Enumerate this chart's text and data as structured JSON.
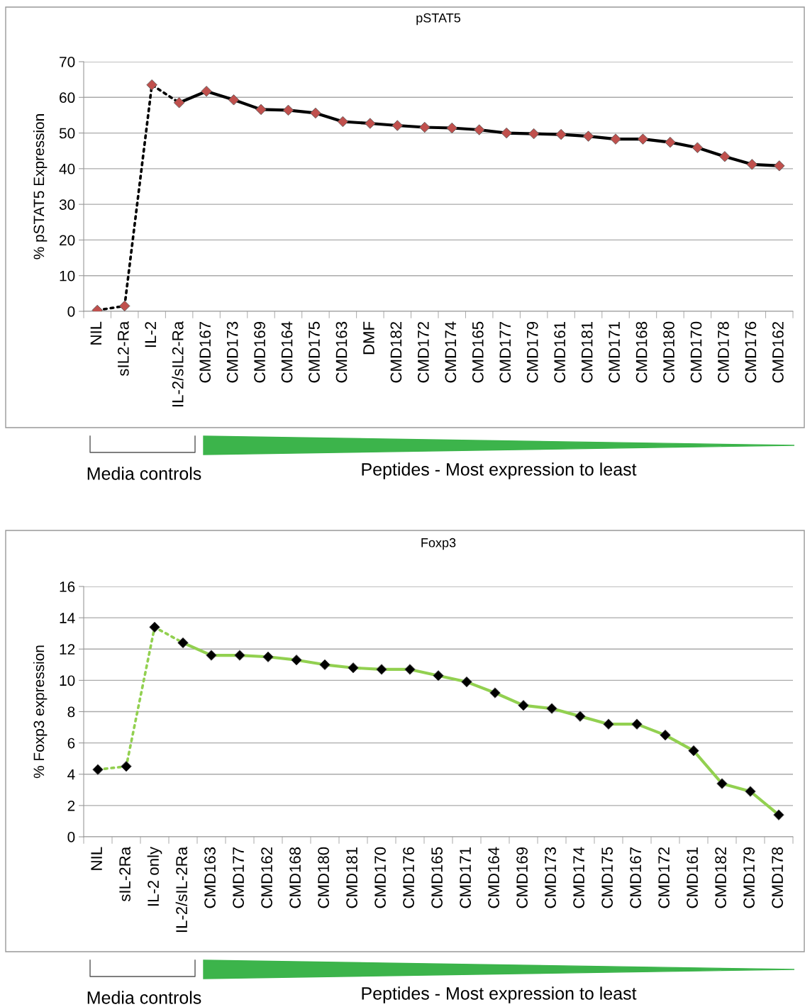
{
  "chart_data": [
    {
      "type": "line",
      "title": "pSTAT5",
      "ylabel": "% pSTAT5 Expression",
      "categories": [
        "NIL",
        "sIL2-Ra",
        "IL-2",
        "IL-2/sIL2-Ra",
        "CMD167",
        "CMD173",
        "CMD169",
        "CMD164",
        "CMD175",
        "CMD163",
        "DMF",
        "CMD182",
        "CMD172",
        "CMD174",
        "CMD165",
        "CMD177",
        "CMD179",
        "CMD161",
        "CMD181",
        "CMD171",
        "CMD168",
        "CMD180",
        "CMD170",
        "CMD178",
        "CMD176",
        "CMD162"
      ],
      "series": [
        {
          "type": "line",
          "line_style": "dotted",
          "color": "#000000",
          "values": [
            0.3,
            1.5,
            63.5,
            58.5,
            null,
            null,
            null,
            null,
            null,
            null,
            null,
            null,
            null,
            null,
            null,
            null,
            null,
            null,
            null,
            null,
            null,
            null,
            null,
            null,
            null,
            null
          ]
        },
        {
          "type": "line",
          "line_style": "solid",
          "color": "#000000",
          "values": [
            null,
            null,
            null,
            58.5,
            61.7,
            59.3,
            56.6,
            56.4,
            55.6,
            53.2,
            52.7,
            52.1,
            51.6,
            51.4,
            50.9,
            50.0,
            49.8,
            49.6,
            49.1,
            48.3,
            48.3,
            47.4,
            45.9,
            43.4,
            41.2,
            40.8
          ]
        },
        {
          "type": "scatter",
          "marker": "diamond",
          "color": "#c0504d",
          "values": [
            0.3,
            1.5,
            63.5,
            58.5,
            61.7,
            59.3,
            56.6,
            56.4,
            55.6,
            53.2,
            52.7,
            52.1,
            51.6,
            51.4,
            50.9,
            50.0,
            49.8,
            49.6,
            49.1,
            48.3,
            48.3,
            47.4,
            45.9,
            43.4,
            41.2,
            40.8
          ]
        }
      ],
      "ylim": [
        0,
        70
      ],
      "yticks": [
        0,
        10,
        20,
        30,
        40,
        50,
        60,
        70
      ],
      "grid": "y",
      "annotations": [
        "Media controls",
        "Peptides - Most expression to least"
      ]
    },
    {
      "type": "line",
      "title": "Foxp3",
      "ylabel": "% Foxp3 expression",
      "categories": [
        "NIL",
        "sIL-2Ra",
        "IL-2 only",
        "IL-2/sIL-2Ra",
        "CMD163",
        "CMD177",
        "CMD162",
        "CMD168",
        "CMD180",
        "CMD181",
        "CMD170",
        "CMD176",
        "CMD165",
        "CMD171",
        "CMD164",
        "CMD169",
        "CMD173",
        "CMD174",
        "CMD175",
        "CMD167",
        "CMD172",
        "CMD161",
        "CMD182",
        "CMD179",
        "CMD178"
      ],
      "series": [
        {
          "type": "line",
          "line_style": "dotted",
          "color": "#92d050",
          "values": [
            4.3,
            4.5,
            13.4,
            12.4,
            null,
            null,
            null,
            null,
            null,
            null,
            null,
            null,
            null,
            null,
            null,
            null,
            null,
            null,
            null,
            null,
            null,
            null,
            null,
            null,
            null
          ]
        },
        {
          "type": "line",
          "line_style": "solid",
          "color": "#92d050",
          "values": [
            null,
            null,
            null,
            12.4,
            11.6,
            11.6,
            11.5,
            11.3,
            11.0,
            10.8,
            10.7,
            10.7,
            10.3,
            9.9,
            9.2,
            8.4,
            8.2,
            7.7,
            7.2,
            7.2,
            6.5,
            5.5,
            3.4,
            2.9,
            1.4
          ]
        },
        {
          "type": "scatter",
          "marker": "diamond",
          "color": "#000000",
          "values": [
            4.3,
            4.5,
            13.4,
            12.4,
            11.6,
            11.6,
            11.5,
            11.3,
            11.0,
            10.8,
            10.7,
            10.7,
            10.3,
            9.9,
            9.2,
            8.4,
            8.2,
            7.7,
            7.2,
            7.2,
            6.5,
            5.5,
            3.4,
            2.9,
            1.4
          ]
        }
      ],
      "ylim": [
        0,
        16
      ],
      "yticks": [
        0,
        2,
        4,
        6,
        8,
        10,
        12,
        14,
        16
      ],
      "grid": "y",
      "annotations": [
        "Media controls",
        "Peptides - Most expression to least"
      ]
    }
  ]
}
